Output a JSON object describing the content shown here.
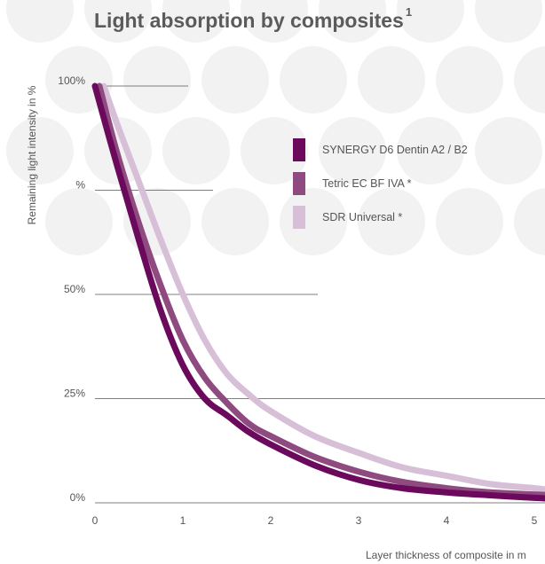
{
  "title": "Light absorption by composites",
  "title_superscript": "1",
  "colors": {
    "background_dots": "#f2f2f2",
    "gridline": "#555555",
    "text": "#555555",
    "title": "#5b5b5b"
  },
  "chart_data": {
    "type": "line",
    "xlabel": "Layer thickness of composite in m",
    "ylabel": "Remaining light intensity in %",
    "xlim": [
      0,
      5.2
    ],
    "ylim": [
      0,
      100
    ],
    "x_ticks": [
      "0",
      "1",
      "2",
      "3",
      "4",
      "5"
    ],
    "y_ticks": [
      {
        "label": "100%",
        "value": 100
      },
      {
        "label": "%",
        "value": 75
      },
      {
        "label": "50%",
        "value": 50
      },
      {
        "label": "25%",
        "value": 25
      },
      {
        "label": "0%",
        "value": 0
      }
    ],
    "grid": "horizontal",
    "legend_position": "top-right",
    "series": [
      {
        "name": "SYNERGY D6 Dentin A2 / B2",
        "color": "#6b0a5c",
        "x": [
          0,
          0.25,
          0.5,
          0.75,
          1.0,
          1.25,
          1.5,
          1.75,
          2.0,
          2.5,
          3.0,
          3.5,
          4.0,
          4.5,
          5.0,
          5.2
        ],
        "y": [
          100,
          81,
          63,
          46,
          33,
          25,
          21,
          17,
          14,
          9,
          5.5,
          3.5,
          2.5,
          1.8,
          1.2,
          1
        ]
      },
      {
        "name": "Tetric EC BF IVA *",
        "color": "#8f4a7f",
        "x": [
          0.05,
          0.25,
          0.5,
          0.75,
          1.0,
          1.25,
          1.5,
          1.75,
          2.0,
          2.5,
          3.0,
          3.5,
          4.0,
          4.5,
          5.0,
          5.2
        ],
        "y": [
          100,
          84,
          67,
          52,
          39,
          30,
          24,
          19,
          16,
          11,
          7.5,
          5,
          3.5,
          2.5,
          2,
          1.8
        ]
      },
      {
        "name": "SDR Universal *",
        "color": "#d8bfd8",
        "x": [
          0.1,
          0.25,
          0.5,
          0.75,
          1.0,
          1.25,
          1.5,
          1.75,
          2.0,
          2.5,
          3.0,
          3.5,
          4.0,
          4.5,
          5.0,
          5.2
        ],
        "y": [
          100,
          91,
          77,
          63,
          50,
          39,
          31,
          26,
          22,
          16,
          12,
          8.5,
          6.5,
          4.5,
          3.5,
          3
        ]
      }
    ]
  }
}
